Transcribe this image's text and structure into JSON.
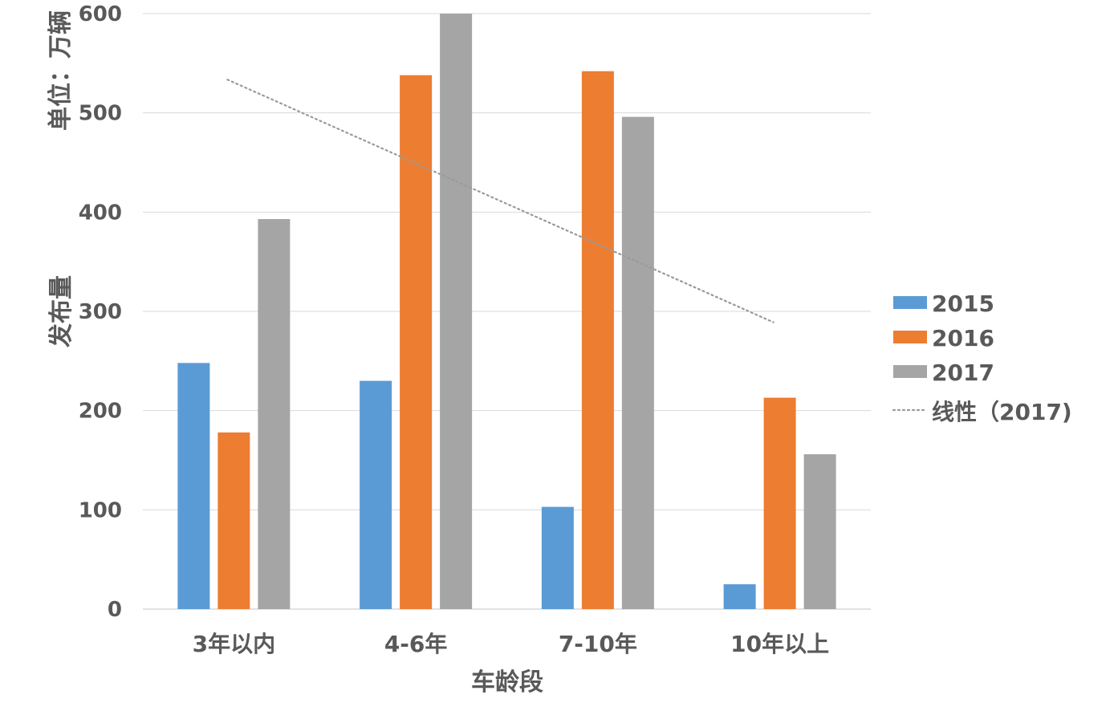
{
  "chart_data": {
    "type": "bar",
    "categories": [
      "3年以内",
      "4-6年",
      "7-10年",
      "10年以上"
    ],
    "series": [
      {
        "name": "2015",
        "color": "#5b9bd5",
        "values": [
          248,
          230,
          103,
          25
        ]
      },
      {
        "name": "2016",
        "color": "#ed7d31",
        "values": [
          178,
          538,
          542,
          213
        ]
      },
      {
        "name": "2017",
        "color": "#a5a5a5",
        "values": [
          393,
          600,
          496,
          156
        ]
      }
    ],
    "trendline": {
      "name": "线性（2017)",
      "type": "linear",
      "series": "2017",
      "color": "#a5a5a5",
      "style": "dotted"
    },
    "xlabel": "车龄段",
    "ylabel": "发布量",
    "yunit": "单位：万辆",
    "ylim": [
      0,
      600
    ],
    "yticks": [
      0,
      100,
      200,
      300,
      400,
      500,
      600
    ],
    "grid": true,
    "legend_position": "right"
  }
}
